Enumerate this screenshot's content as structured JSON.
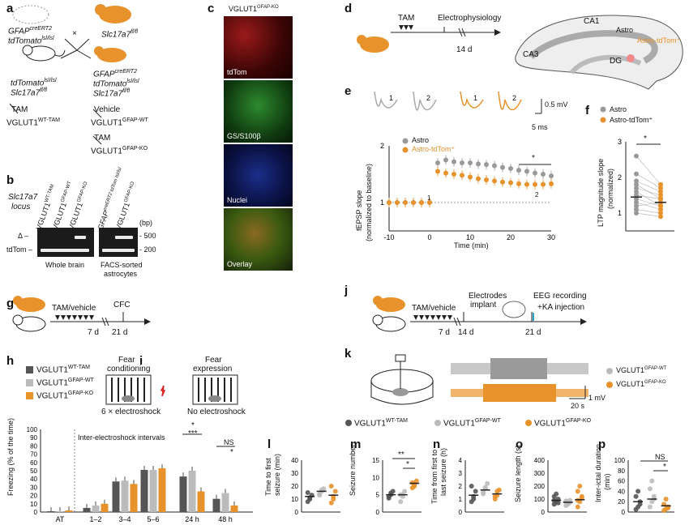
{
  "panels": {
    "a": "a",
    "b": "b",
    "c": "c",
    "d": "d",
    "e": "e",
    "f": "f",
    "g": "g",
    "h": "h",
    "i": "i",
    "j": "j",
    "k": "k",
    "l": "l",
    "m": "m",
    "n": "n",
    "o": "o",
    "p": "p"
  },
  "panel_a": {
    "mouse1_line1": "GFAP",
    "mouse1_sup1": "creERT2",
    "mouse1_line2": "tdTomato",
    "mouse1_sup2": "lsl/lsl",
    "cross": "×",
    "mouse2_line": "Slc17a7",
    "mouse2_sup": "fl/fl",
    "offA_line1": "tdTomato",
    "offA_sup1": "lsl/lsl",
    "offA_line2": "Slc17a7",
    "offA_sup2": "fl/fl",
    "offB_line1": "GFAP",
    "offB_sup1": "creERT2",
    "offB_line2": "tdTomato",
    "offB_sup2": "lsl/lsl",
    "offB_line3": "Slc17a7",
    "offB_sup3": "fl/fl",
    "tam": "TAM",
    "vglut_wt_tam": "VGLUT1",
    "vglut_wt_tam_sup": "WT-TAM",
    "vehicle": "Vehicle",
    "vglut_gfap_wt": "VGLUT1",
    "vglut_gfap_wt_sup": "GFAP-WT",
    "tam2": "TAM",
    "vglut_gfap_ko": "VGLUT1",
    "vglut_gfap_ko_sup": "GFAP-KO"
  },
  "panel_b": {
    "locus": "Slc17a7",
    "locus2": "locus",
    "lane_labels": [
      "VGLUT1",
      "VGLUT1",
      "VGLUT1",
      "GFAP",
      "VGLUT1"
    ],
    "lane_sups": [
      "WT-TAM",
      "GFAP-WT",
      "GFAP-KO",
      "creERT2 tdTom lsl/lsl",
      "GFAP-KO"
    ],
    "bp": "(bp)",
    "band_500": "- 500",
    "band_200": "- 200",
    "delta": "Δ –",
    "tdtom": "tdTom –",
    "whole_brain": "Whole brain",
    "facs": "FACS-sorted",
    "facs2": "astrocytes"
  },
  "panel_c": {
    "title": "VGLUT1",
    "title_sup": "GFAP-KO",
    "tiles": [
      "tdTom",
      "GS/S100β",
      "Nuclei",
      "Overlay"
    ]
  },
  "panel_d": {
    "tam": "TAM",
    "ephys": "Electrophysiology",
    "days": "14 d",
    "ca1": "CA1",
    "ca3": "CA3",
    "dg": "DG",
    "astro": "Astro",
    "astro_tdtom": "Astro-tdTom⁺"
  },
  "panel_e": {
    "trace_labels": [
      "1",
      "2",
      "1",
      "2"
    ],
    "scale_v": "0.5 mV",
    "scale_t": "5 ms",
    "legend": [
      "Astro",
      "Astro-tdTom⁺"
    ],
    "ylabel": "fEPSP slope",
    "ylabel2": "(normalized to baseline)",
    "xlabel": "Time (min)",
    "sig": "*",
    "marker1": "1",
    "marker2": "2"
  },
  "panel_f": {
    "legend": [
      "Astro",
      "Astro-tdTom⁺"
    ],
    "ylabel": "LTP magnitude slope",
    "ylabel2": "(normalized)",
    "sig": "*"
  },
  "panel_g": {
    "tam": "TAM/vehicle",
    "cfc": "CFC",
    "d7": "7 d",
    "d21": "21 d"
  },
  "panel_h": {
    "legend": [
      "VGLUT1",
      "VGLUT1",
      "VGLUT1"
    ],
    "legend_sup": [
      "WT-TAM",
      "GFAP-WT",
      "GFAP-KO"
    ],
    "fear": "Fear",
    "conditioning": "conditioning",
    "shock": "6 × electroshock",
    "ylabel": "Freezing (% of the time)",
    "intervals": "Inter-electroshock intervals",
    "sig_star": "*",
    "sig_3star": "***",
    "ns": "NS",
    "sig_star2": "*"
  },
  "panel_i": {
    "fear": "Fear",
    "expression": "expression",
    "no_shock": "No electroshock"
  },
  "panel_j": {
    "tam": "TAM/vehicle",
    "electrodes": "Electrodes",
    "implant": "implant",
    "eeg": "EEG recording",
    "ka": "+KA injection",
    "d7": "7 d",
    "d14": "14 d",
    "d21": "21 d"
  },
  "panel_k": {
    "legend": [
      "VGLUT1",
      "VGLUT1"
    ],
    "legend_sup": [
      "GFAP-WT",
      "GFAP-KO"
    ],
    "scale_v": "1 mV",
    "scale_t": "20 s"
  },
  "panel_lmnop_legend": [
    "VGLUT1",
    "VGLUT1",
    "VGLUT1"
  ],
  "panel_lmnop_legend_sup": [
    "WT-TAM",
    "GFAP-WT",
    "GFAP-KO"
  ],
  "panel_l": {
    "ylabel": "Time to first",
    "ylabel2": "seizure (min)"
  },
  "panel_m": {
    "ylabel": "Seizure number",
    "sig1": "**",
    "sig2": "*"
  },
  "panel_n": {
    "ylabel": "Time from first to",
    "ylabel2": "last seizure (h)"
  },
  "panel_o": {
    "ylabel": "Seizure length (s)"
  },
  "panel_p": {
    "ylabel": "Inter-ictal duration",
    "ylabel2": "(min)",
    "ns": "NS",
    "sig": "*"
  },
  "colors": {
    "wt_tam": "#555555",
    "gfap_wt": "#bbbbbb",
    "gfap_ko": "#e8922c"
  },
  "chart_data": [
    {
      "type": "line",
      "panel": "e",
      "x": [
        -10,
        -8,
        -6,
        -4,
        -2,
        0,
        2,
        4,
        6,
        8,
        10,
        12,
        14,
        16,
        18,
        20,
        22,
        24,
        26,
        28,
        30
      ],
      "series": [
        {
          "name": "Astro",
          "values": [
            1.0,
            1.0,
            1.0,
            1.0,
            1.0,
            1.0,
            1.7,
            1.75,
            1.72,
            1.7,
            1.7,
            1.68,
            1.67,
            1.65,
            1.62,
            1.6,
            1.57,
            1.55,
            1.52,
            1.5,
            1.47
          ]
        },
        {
          "name": "Astro-tdTom⁺",
          "values": [
            1.0,
            1.0,
            1.0,
            1.0,
            1.0,
            1.0,
            1.55,
            1.52,
            1.5,
            1.48,
            1.45,
            1.42,
            1.4,
            1.38,
            1.36,
            1.35,
            1.33,
            1.32,
            1.32,
            1.32,
            1.33
          ]
        }
      ],
      "xlim": [
        -10,
        30
      ],
      "ylim": [
        0.5,
        2
      ],
      "yticks": [
        1,
        2
      ],
      "xticks": [
        -10,
        0,
        10,
        20,
        30
      ]
    },
    {
      "type": "scatter",
      "panel": "f",
      "categories": [
        "Astro",
        "Astro-tdTom⁺"
      ],
      "means": [
        1.45,
        1.3
      ],
      "ylim": [
        0.5,
        3
      ],
      "yticks": [
        1,
        2,
        3
      ]
    },
    {
      "type": "bar",
      "panel": "h",
      "categories": [
        "AT",
        "1–2",
        "3–4",
        "5–6",
        "24 h",
        "48 h"
      ],
      "series": [
        {
          "name": "VGLUT1 WT-TAM",
          "values": [
            1,
            5,
            37,
            51,
            43,
            16
          ]
        },
        {
          "name": "VGLUT1 GFAP-WT",
          "values": [
            1,
            8,
            38,
            51,
            50,
            23
          ]
        },
        {
          "name": "VGLUT1 GFAP-KO",
          "values": [
            2,
            10,
            34,
            53,
            25,
            8
          ]
        }
      ],
      "ylim": [
        0,
        100
      ],
      "yticks": [
        0,
        10,
        20,
        30,
        40,
        50,
        60,
        70,
        80,
        90,
        100
      ]
    },
    {
      "type": "scatter",
      "panel": "l",
      "categories": [
        "WT-TAM",
        "GFAP-WT",
        "GFAP-KO"
      ],
      "means": [
        12,
        16,
        13
      ],
      "ylim": [
        0,
        40
      ],
      "yticks": [
        0,
        10,
        20,
        30,
        40
      ]
    },
    {
      "type": "scatter",
      "panel": "m",
      "categories": [
        "WT-TAM",
        "GFAP-WT",
        "GFAP-KO"
      ],
      "means": [
        5,
        5,
        8.3
      ],
      "ylim": [
        0,
        15
      ],
      "yticks": [
        0,
        5,
        10,
        15
      ]
    },
    {
      "type": "scatter",
      "panel": "n",
      "categories": [
        "WT-TAM",
        "GFAP-WT",
        "GFAP-KO"
      ],
      "means": [
        1.3,
        1.7,
        1.4
      ],
      "ylim": [
        0,
        4
      ],
      "yticks": [
        0,
        1,
        2,
        3,
        4
      ]
    },
    {
      "type": "scatter",
      "panel": "o",
      "categories": [
        "WT-TAM",
        "GFAP-WT",
        "GFAP-KO"
      ],
      "means": [
        90,
        75,
        95
      ],
      "ylim": [
        0,
        400
      ],
      "yticks": [
        0,
        100,
        200,
        300,
        400
      ]
    },
    {
      "type": "scatter",
      "panel": "p",
      "categories": [
        "WT-TAM",
        "GFAP-WT",
        "GFAP-KO"
      ],
      "means": [
        20,
        25,
        12
      ],
      "ylim": [
        0,
        100
      ],
      "yticks": [
        0,
        20,
        40,
        60,
        80,
        100
      ]
    }
  ]
}
